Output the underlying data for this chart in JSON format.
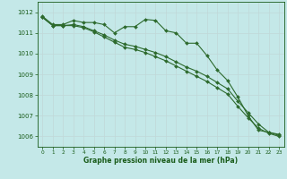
{
  "background_color": "#c4e8e8",
  "grid_color": "#aed4d4",
  "line_color": "#2d6a2d",
  "marker_color": "#2d6a2d",
  "xlabel": "Graphe pression niveau de la mer (hPa)",
  "xlabel_color": "#1a5c1a",
  "tick_color": "#1a5c1a",
  "ylim": [
    1005.5,
    1012.5
  ],
  "xlim": [
    -0.5,
    23.5
  ],
  "yticks": [
    1006,
    1007,
    1008,
    1009,
    1010,
    1011,
    1012
  ],
  "xticks": [
    0,
    1,
    2,
    3,
    4,
    5,
    6,
    7,
    8,
    9,
    10,
    11,
    12,
    13,
    14,
    15,
    16,
    17,
    18,
    19,
    20,
    21,
    22,
    23
  ],
  "series1": [
    1011.8,
    1011.4,
    1011.4,
    1011.6,
    1011.5,
    1011.5,
    1011.4,
    1011.0,
    1011.3,
    1011.3,
    1011.65,
    1011.6,
    1011.1,
    1011.0,
    1010.5,
    1010.5,
    1009.9,
    1009.2,
    1008.7,
    1007.9,
    1007.0,
    1006.3,
    1006.2,
    1006.1
  ],
  "series2": [
    1011.75,
    1011.35,
    1011.35,
    1011.4,
    1011.3,
    1011.1,
    1010.9,
    1010.65,
    1010.45,
    1010.35,
    1010.2,
    1010.05,
    1009.85,
    1009.6,
    1009.35,
    1009.15,
    1008.9,
    1008.6,
    1008.3,
    1007.7,
    1007.15,
    1006.6,
    1006.2,
    1006.05
  ],
  "series3": [
    1011.75,
    1011.35,
    1011.35,
    1011.35,
    1011.25,
    1011.05,
    1010.8,
    1010.55,
    1010.3,
    1010.2,
    1010.05,
    1009.85,
    1009.65,
    1009.4,
    1009.15,
    1008.9,
    1008.65,
    1008.35,
    1008.05,
    1007.45,
    1006.9,
    1006.4,
    1006.15,
    1006.0
  ]
}
